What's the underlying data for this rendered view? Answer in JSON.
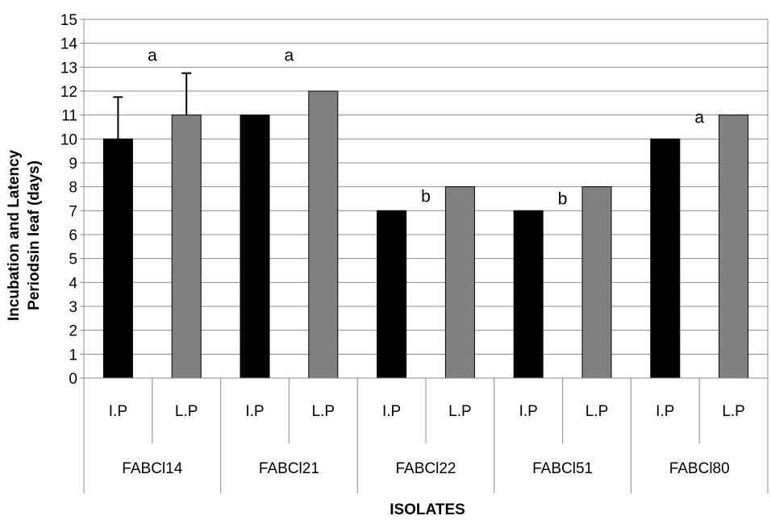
{
  "chart_data": {
    "type": "bar",
    "title": "",
    "xlabel": "ISOLATES",
    "ylabel_lines": [
      "Incubation and Latency",
      "Periodsin  leaf (days)"
    ],
    "ylim": [
      0,
      15
    ],
    "yticks": [
      0,
      1,
      2,
      3,
      4,
      5,
      6,
      7,
      8,
      9,
      10,
      11,
      12,
      13,
      14,
      15
    ],
    "grid": true,
    "legend": "none",
    "groups": [
      "FABCl14",
      "FABCl21",
      "FABCl22",
      "FABCl51",
      "FABCl80"
    ],
    "subcategories": [
      "I.P",
      "L.P"
    ],
    "series": [
      {
        "name": "I.P",
        "color": "#000000",
        "values": [
          10,
          11,
          7,
          7,
          10
        ]
      },
      {
        "name": "L.P",
        "color": "#808080",
        "values": [
          11,
          12,
          8,
          8,
          11
        ]
      }
    ],
    "error_bars": [
      {
        "group": "FABCl14",
        "series": "I.P",
        "upper": 11.75
      },
      {
        "group": "FABCl14",
        "series": "L.P",
        "upper": 12.75
      }
    ],
    "annotations": [
      {
        "text": "a",
        "group": "FABCl14",
        "y": 13.5
      },
      {
        "text": "a",
        "group": "FABCl21",
        "y": 13.5
      },
      {
        "text": "b",
        "group": "FABCl22",
        "y": 7.6
      },
      {
        "text": "b",
        "group": "FABCl51",
        "y": 7.5
      },
      {
        "text": "a",
        "group": "FABCl80",
        "y": 10.9
      }
    ]
  }
}
